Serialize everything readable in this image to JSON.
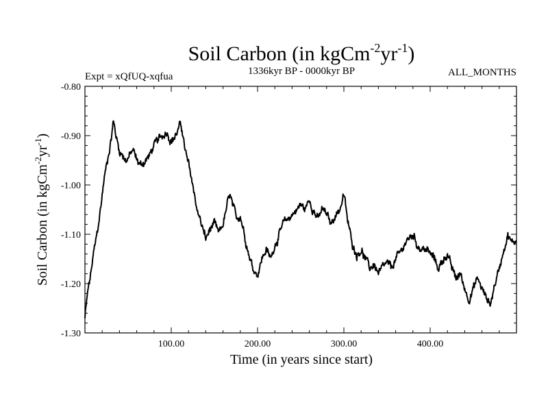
{
  "chart_data": {
    "type": "line",
    "title": {
      "main": "Soil Carbon (in kgCm",
      "sup1": "-2",
      "mid": "yr",
      "sup2": "-1",
      "end": ")"
    },
    "header": {
      "left": "Expt = xQfUQ-xqfua",
      "center": "1336kyr BP - 0000kyr BP",
      "right": "ALL_MONTHS"
    },
    "xlabel": "Time (in years since start)",
    "ylabel": {
      "main": "Soil Carbon (in kgCm",
      "sup1": "-2",
      "mid": "yr",
      "sup2": "-1",
      "end": ")"
    },
    "xlim": [
      0,
      500
    ],
    "ylim": [
      -1.3,
      -0.8
    ],
    "x_ticks": [
      100,
      200,
      300,
      400
    ],
    "x_tick_labels": [
      "100.00",
      "200.00",
      "300.00",
      "400.00"
    ],
    "y_ticks": [
      -0.8,
      -0.9,
      -1.0,
      -1.1,
      -1.2,
      -1.3
    ],
    "y_tick_labels": [
      "-0.80",
      "-0.90",
      "-1.00",
      "-1.10",
      "-1.20",
      "-1.30"
    ],
    "series": [
      {
        "name": "Soil Carbon",
        "color": "#000000",
        "keypoints": [
          [
            0,
            -1.27
          ],
          [
            3,
            -1.22
          ],
          [
            6,
            -1.19
          ],
          [
            10,
            -1.14
          ],
          [
            14,
            -1.1
          ],
          [
            18,
            -1.05
          ],
          [
            22,
            -0.99
          ],
          [
            26,
            -0.95
          ],
          [
            30,
            -0.91
          ],
          [
            33,
            -0.87
          ],
          [
            36,
            -0.9
          ],
          [
            40,
            -0.93
          ],
          [
            44,
            -0.94
          ],
          [
            48,
            -0.95
          ],
          [
            52,
            -0.94
          ],
          [
            56,
            -0.93
          ],
          [
            60,
            -0.95
          ],
          [
            65,
            -0.96
          ],
          [
            70,
            -0.95
          ],
          [
            75,
            -0.94
          ],
          [
            80,
            -0.92
          ],
          [
            85,
            -0.91
          ],
          [
            90,
            -0.9
          ],
          [
            95,
            -0.89
          ],
          [
            100,
            -0.91
          ],
          [
            105,
            -0.9
          ],
          [
            110,
            -0.88
          ],
          [
            113,
            -0.89
          ],
          [
            116,
            -0.93
          ],
          [
            120,
            -0.96
          ],
          [
            125,
            -1.0
          ],
          [
            130,
            -1.05
          ],
          [
            135,
            -1.08
          ],
          [
            140,
            -1.11
          ],
          [
            145,
            -1.09
          ],
          [
            150,
            -1.08
          ],
          [
            155,
            -1.1
          ],
          [
            160,
            -1.08
          ],
          [
            165,
            -1.04
          ],
          [
            168,
            -1.02
          ],
          [
            172,
            -1.05
          ],
          [
            176,
            -1.07
          ],
          [
            180,
            -1.06
          ],
          [
            185,
            -1.1
          ],
          [
            190,
            -1.14
          ],
          [
            195,
            -1.17
          ],
          [
            200,
            -1.18
          ],
          [
            205,
            -1.15
          ],
          [
            210,
            -1.13
          ],
          [
            215,
            -1.15
          ],
          [
            220,
            -1.12
          ],
          [
            225,
            -1.1
          ],
          [
            230,
            -1.08
          ],
          [
            235,
            -1.07
          ],
          [
            240,
            -1.06
          ],
          [
            245,
            -1.05
          ],
          [
            250,
            -1.04
          ],
          [
            255,
            -1.05
          ],
          [
            260,
            -1.03
          ],
          [
            265,
            -1.05
          ],
          [
            270,
            -1.07
          ],
          [
            275,
            -1.05
          ],
          [
            280,
            -1.06
          ],
          [
            285,
            -1.08
          ],
          [
            290,
            -1.06
          ],
          [
            295,
            -1.05
          ],
          [
            300,
            -1.02
          ],
          [
            305,
            -1.08
          ],
          [
            310,
            -1.12
          ],
          [
            315,
            -1.14
          ],
          [
            320,
            -1.13
          ],
          [
            325,
            -1.15
          ],
          [
            330,
            -1.17
          ],
          [
            335,
            -1.16
          ],
          [
            340,
            -1.18
          ],
          [
            345,
            -1.17
          ],
          [
            350,
            -1.16
          ],
          [
            355,
            -1.17
          ],
          [
            360,
            -1.15
          ],
          [
            365,
            -1.14
          ],
          [
            370,
            -1.12
          ],
          [
            375,
            -1.11
          ],
          [
            380,
            -1.1
          ],
          [
            385,
            -1.12
          ],
          [
            390,
            -1.13
          ],
          [
            395,
            -1.13
          ],
          [
            400,
            -1.14
          ],
          [
            405,
            -1.15
          ],
          [
            410,
            -1.17
          ],
          [
            415,
            -1.15
          ],
          [
            420,
            -1.14
          ],
          [
            425,
            -1.17
          ],
          [
            430,
            -1.19
          ],
          [
            435,
            -1.18
          ],
          [
            440,
            -1.21
          ],
          [
            445,
            -1.23
          ],
          [
            450,
            -1.21
          ],
          [
            455,
            -1.19
          ],
          [
            460,
            -1.21
          ],
          [
            465,
            -1.23
          ],
          [
            470,
            -1.24
          ],
          [
            475,
            -1.2
          ],
          [
            480,
            -1.17
          ],
          [
            485,
            -1.13
          ],
          [
            490,
            -1.1
          ],
          [
            495,
            -1.12
          ],
          [
            500,
            -1.11
          ]
        ],
        "noise_amplitude": 0.009
      }
    ]
  }
}
